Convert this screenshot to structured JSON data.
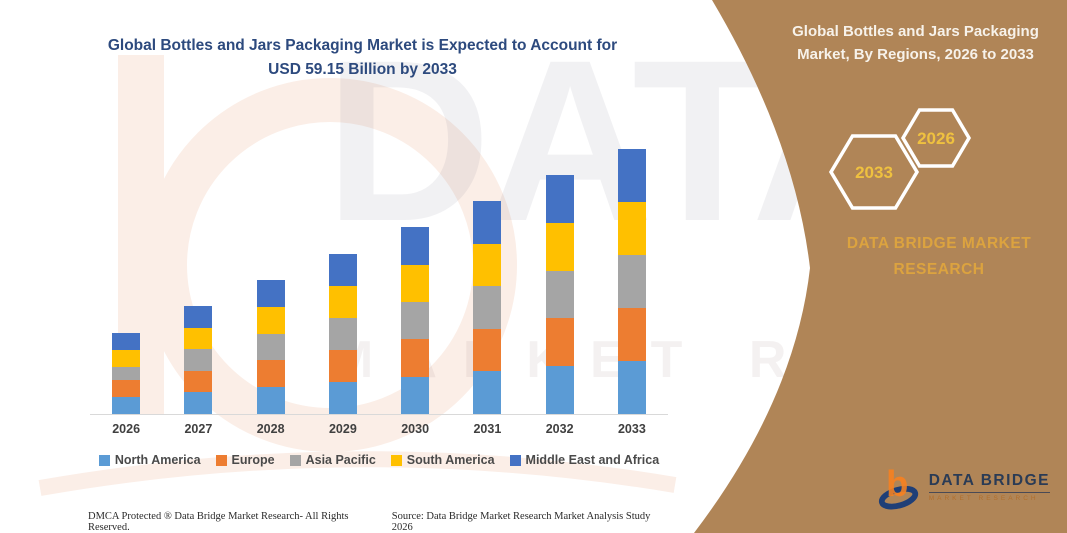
{
  "accent_colors": {
    "panel_brown": "#b08557",
    "title_navy": "#2d4a7e",
    "gold_text": "#dca33f",
    "hex_year_gold": "#efc13f",
    "axis_line": "#d9d9d9"
  },
  "chart_data": {
    "type": "bar",
    "stacked": true,
    "title": "Global Bottles and Jars Packaging Market is Expected to Account for USD 59.15 Billion by 2033",
    "categories": [
      "2026",
      "2027",
      "2028",
      "2029",
      "2030",
      "2031",
      "2032",
      "2033"
    ],
    "series": [
      {
        "name": "North America",
        "color": "#5B9BD5",
        "values": [
          3.7,
          4.8,
          5.97,
          7.14,
          8.32,
          9.49,
          10.66,
          11.83
        ]
      },
      {
        "name": "Europe",
        "color": "#ED7D31",
        "values": [
          3.9,
          4.8,
          5.97,
          7.14,
          8.32,
          9.49,
          10.66,
          11.83
        ]
      },
      {
        "name": "Asia Pacific",
        "color": "#A5A5A5",
        "values": [
          2.9,
          4.8,
          5.97,
          7.14,
          8.32,
          9.49,
          10.66,
          11.83
        ]
      },
      {
        "name": "South America",
        "color": "#FFC000",
        "values": [
          3.7,
          4.8,
          5.97,
          7.14,
          8.32,
          9.49,
          10.66,
          11.83
        ]
      },
      {
        "name": "Middle East and Africa",
        "color": "#4472C4",
        "values": [
          3.9,
          4.8,
          5.97,
          7.14,
          8.32,
          9.49,
          10.66,
          11.83
        ]
      }
    ],
    "totals": [
      18.1,
      24.0,
      29.85,
      35.7,
      41.6,
      47.45,
      53.3,
      59.15
    ],
    "xlabel": "",
    "ylabel": "",
    "ylim": [
      0,
      59.5
    ],
    "grid": false,
    "value_axis_visible": false,
    "legend_position": "bottom"
  },
  "right_panel": {
    "title": "Global Bottles and Jars Packaging Market, By Regions, 2026 to 2033",
    "hex_small_year": "2026",
    "hex_large_year": "2033",
    "brand": "DATA BRIDGE MARKET RESEARCH",
    "logo_title": "DATA BRIDGE",
    "logo_subtitle": "MARKET RESEARCH"
  },
  "watermark": {
    "line1": "DATA BRID",
    "line2": "MARKET RESE"
  },
  "footer": {
    "left": "DMCA Protected ® Data Bridge Market Research-  All Rights Reserved.",
    "right": "Source: Data Bridge Market Research  Market Analysis Study 2026"
  }
}
